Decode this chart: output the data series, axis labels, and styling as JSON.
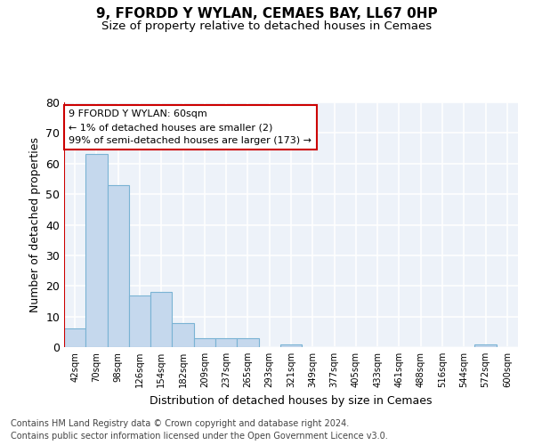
{
  "title": "9, FFORDD Y WYLAN, CEMAES BAY, LL67 0HP",
  "subtitle": "Size of property relative to detached houses in Cemaes",
  "xlabel": "Distribution of detached houses by size in Cemaes",
  "ylabel": "Number of detached properties",
  "bin_labels": [
    "42sqm",
    "70sqm",
    "98sqm",
    "126sqm",
    "154sqm",
    "182sqm",
    "209sqm",
    "237sqm",
    "265sqm",
    "293sqm",
    "321sqm",
    "349sqm",
    "377sqm",
    "405sqm",
    "433sqm",
    "461sqm",
    "488sqm",
    "516sqm",
    "544sqm",
    "572sqm",
    "600sqm"
  ],
  "bar_values": [
    6,
    63,
    53,
    17,
    18,
    8,
    3,
    3,
    3,
    0,
    1,
    0,
    0,
    0,
    0,
    0,
    0,
    0,
    0,
    1,
    0
  ],
  "bar_color": "#c5d8ed",
  "bar_edge_color": "#7ab3d4",
  "background_color": "#edf2f9",
  "grid_color": "#ffffff",
  "ylim": [
    0,
    80
  ],
  "yticks": [
    0,
    10,
    20,
    30,
    40,
    50,
    60,
    70,
    80
  ],
  "annotation_line1": "9 FFORDD Y WYLAN: 60sqm",
  "annotation_line2": "← 1% of detached houses are smaller (2)",
  "annotation_line3": "99% of semi-detached houses are larger (173) →",
  "annotation_box_color": "#cc0000",
  "footer_line1": "Contains HM Land Registry data © Crown copyright and database right 2024.",
  "footer_line2": "Contains public sector information licensed under the Open Government Licence v3.0.",
  "title_fontsize": 11,
  "subtitle_fontsize": 9.5,
  "ylabel_fontsize": 9,
  "xlabel_fontsize": 9,
  "footer_fontsize": 7
}
